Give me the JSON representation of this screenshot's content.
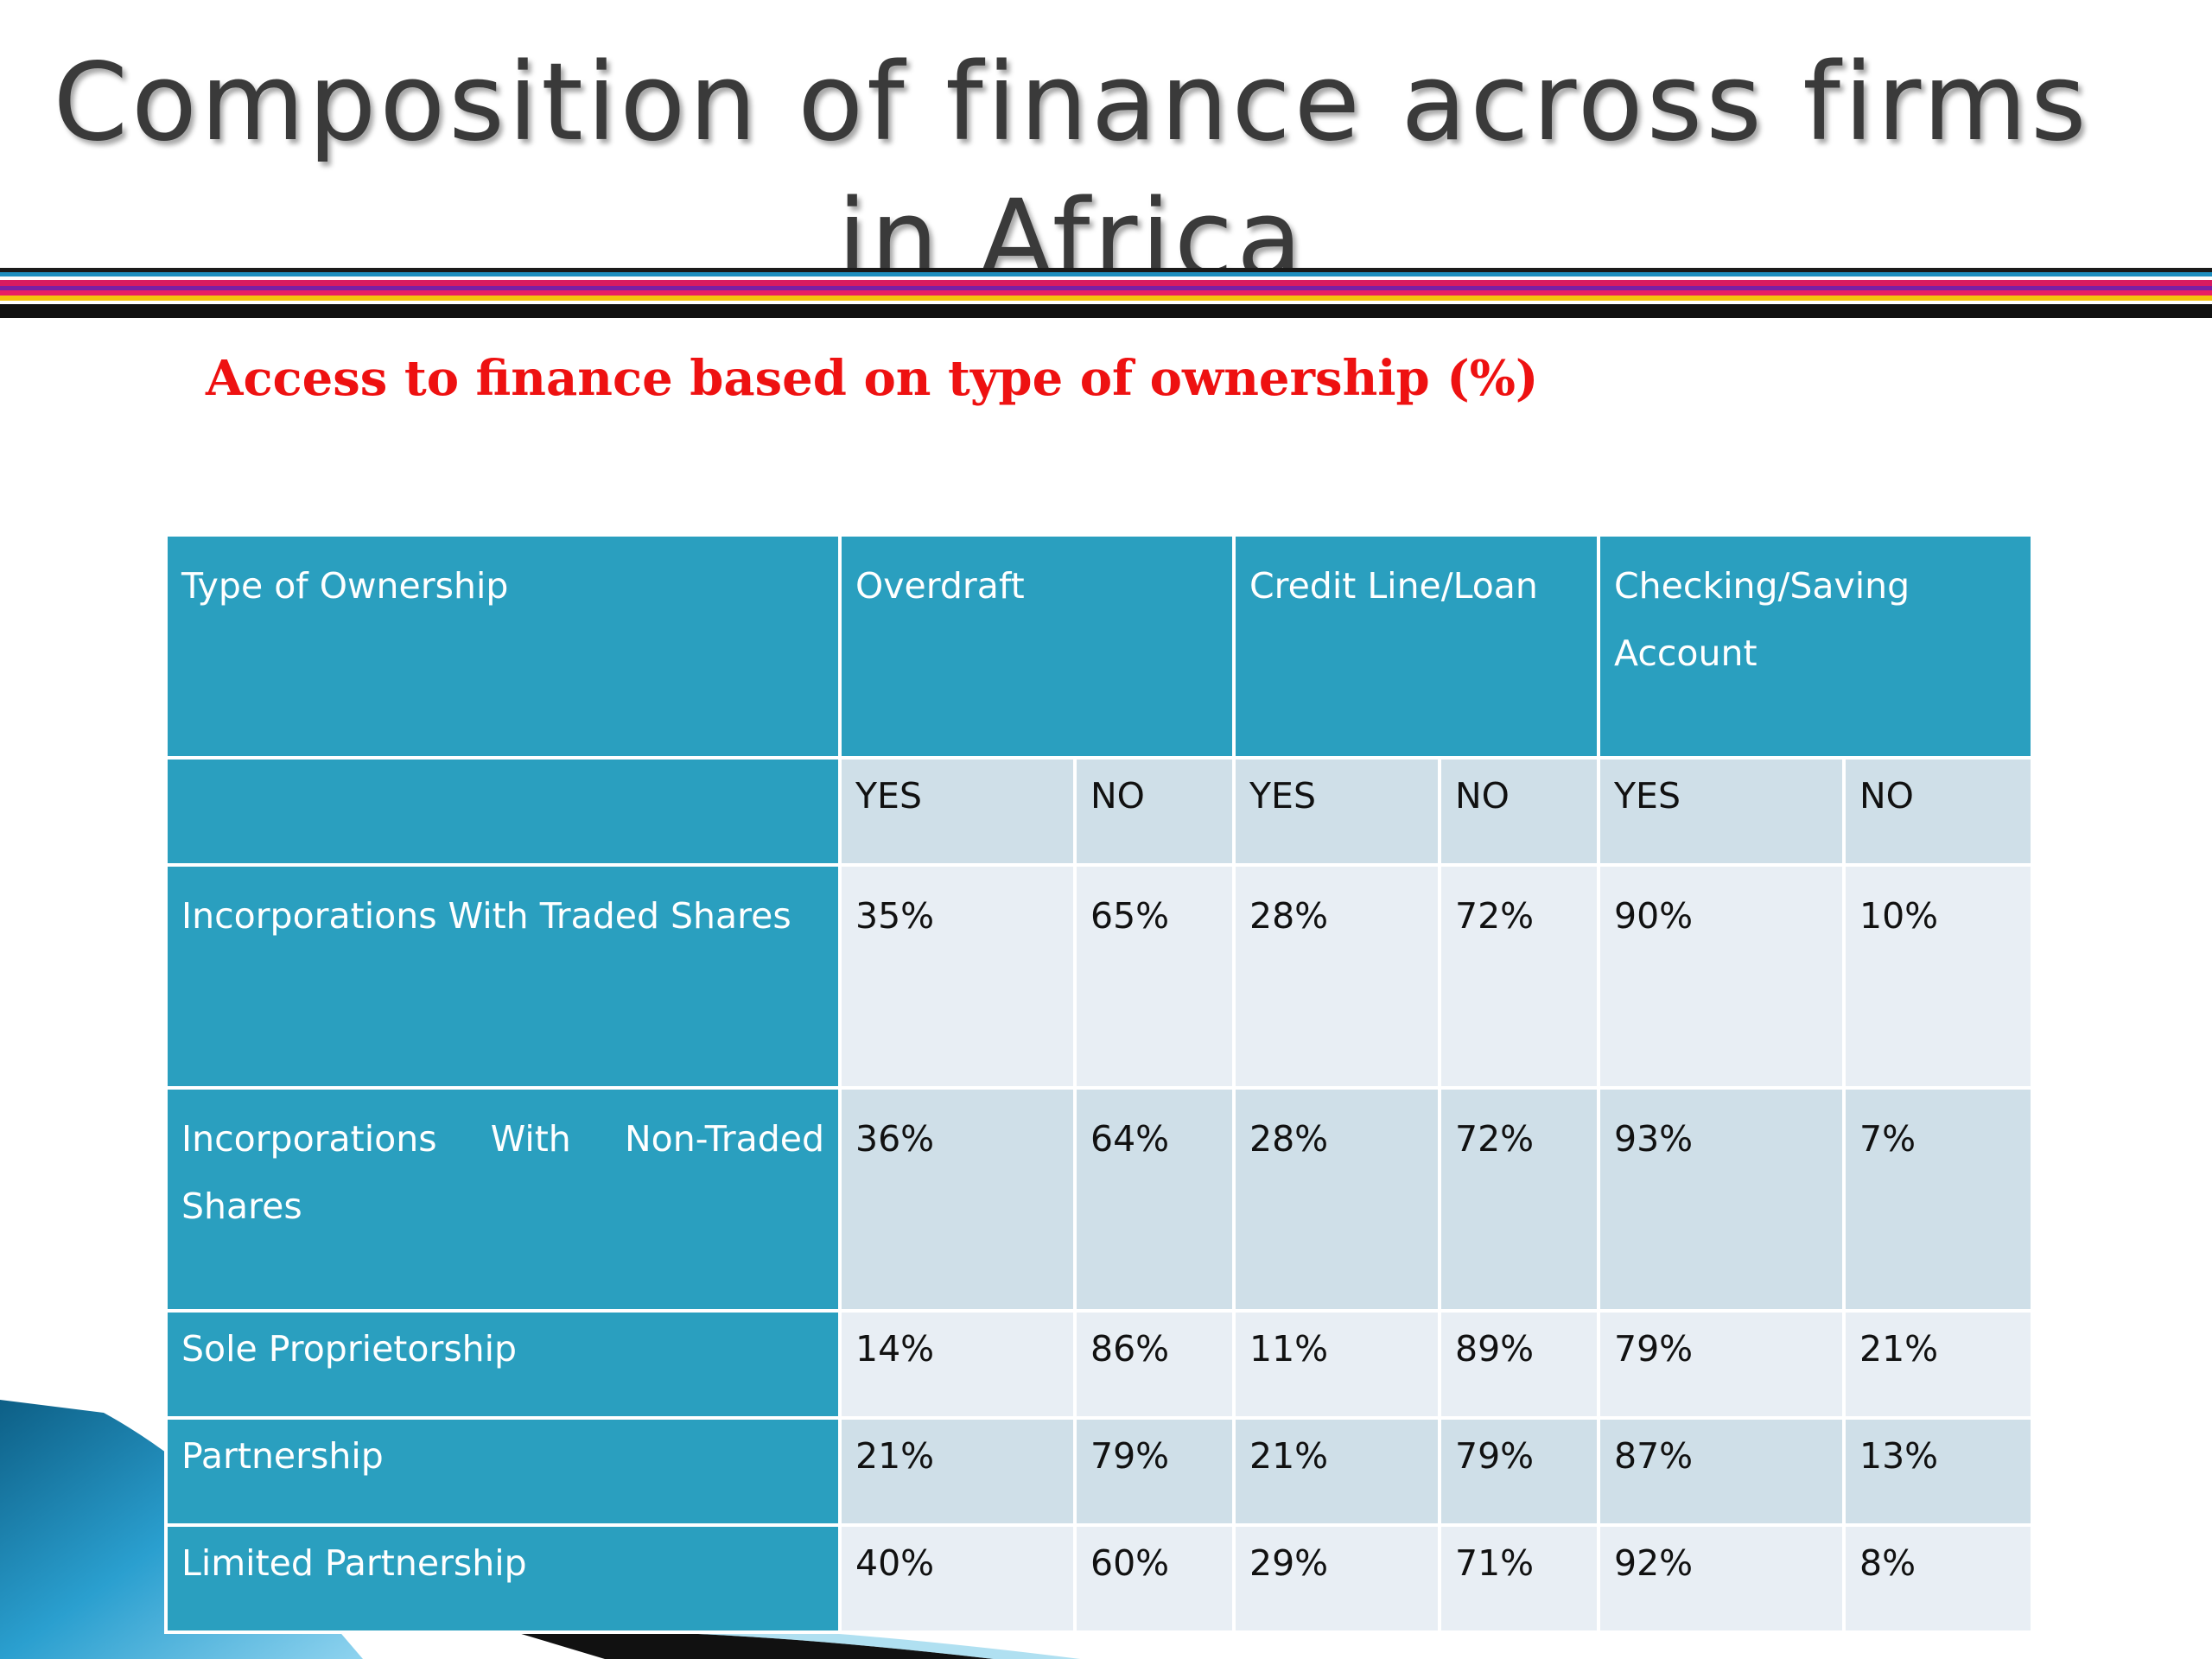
{
  "slide": {
    "title": "Composition of finance across firms in Africa",
    "subtitle": "Access to finance based on type of ownership (%)"
  },
  "table": {
    "headers": {
      "ownership": "Type of Ownership",
      "overdraft": "Overdraft",
      "credit": "Credit Line/Loan",
      "checking": "Checking/Saving Account"
    },
    "subheaders": [
      "YES",
      "NO",
      "YES",
      "NO",
      "YES",
      "NO"
    ],
    "rows": [
      {
        "label": "Incorporations With Traded Shares",
        "values": [
          "35%",
          "65%",
          "28%",
          "72%",
          "90%",
          "10%"
        ]
      },
      {
        "label": "Incorporations With Non-Traded Shares",
        "values": [
          "36%",
          "64%",
          "28%",
          "72%",
          "93%",
          "7%"
        ]
      },
      {
        "label": "Sole Proprietorship",
        "values": [
          "14%",
          "86%",
          "11%",
          "89%",
          "79%",
          "21%"
        ]
      },
      {
        "label": "Partnership",
        "values": [
          "21%",
          "79%",
          "21%",
          "79%",
          "87%",
          "13%"
        ]
      },
      {
        "label": "Limited Partnership",
        "values": [
          "40%",
          "60%",
          "29%",
          "71%",
          "92%",
          "8%"
        ]
      }
    ]
  },
  "colors": {
    "header_bg": "#2a9fbf",
    "cell_dark": "#cfdfe8",
    "cell_light": "#e8eef4",
    "subtitle": "#ee1111",
    "title": "#3a3a3a"
  }
}
